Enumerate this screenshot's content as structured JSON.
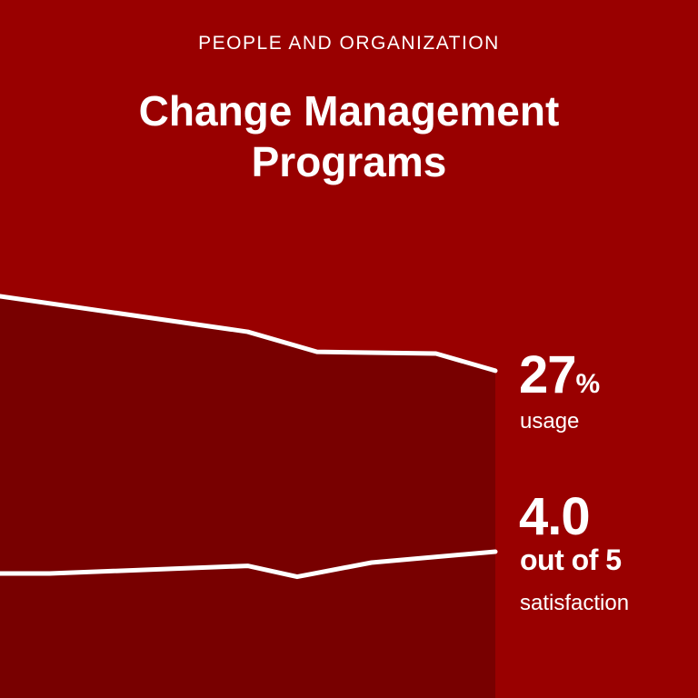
{
  "header": {
    "eyebrow": "PEOPLE AND ORGANIZATION",
    "title_line1": "Change Management",
    "title_line2": "Programs"
  },
  "metrics": {
    "usage": {
      "value": "27",
      "unit": "%",
      "label": "usage"
    },
    "satisfaction": {
      "value": "4.0",
      "scale": "out of 5",
      "label": "satisfaction"
    }
  },
  "colors": {
    "background": "#990000",
    "area": "#780000",
    "line": "#ffffff"
  },
  "chart_data": {
    "type": "line",
    "title": "Change Management Programs",
    "xlabel": "",
    "ylabel": "",
    "grid": false,
    "x": [
      0,
      1,
      2,
      3,
      4
    ],
    "series": [
      {
        "name": "usage",
        "unit": "%",
        "x": [
          0,
          2.5,
          3.2,
          4.4,
          5
        ],
        "values": [
          40,
          33.8,
          30.3,
          30,
          27
        ]
      },
      {
        "name": "satisfaction",
        "unit": "out of 5",
        "x": [
          0,
          0.5,
          2.5,
          3,
          3.75,
          5
        ],
        "values": [
          3.8,
          3.8,
          3.87,
          3.77,
          3.9,
          4.0
        ]
      }
    ]
  }
}
